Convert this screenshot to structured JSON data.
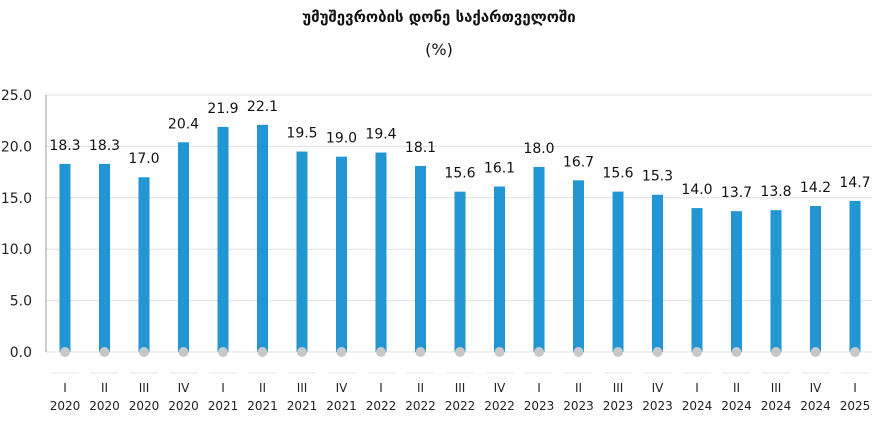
{
  "chart_data": {
    "type": "bar",
    "title": "უმუშევრობის დონე საქართველოში",
    "subtitle": "(%)",
    "categories": [
      {
        "quarter": "I",
        "year": "2020"
      },
      {
        "quarter": "II",
        "year": "2020"
      },
      {
        "quarter": "III",
        "year": "2020"
      },
      {
        "quarter": "IV",
        "year": "2020"
      },
      {
        "quarter": "I",
        "year": "2021"
      },
      {
        "quarter": "II",
        "year": "2021"
      },
      {
        "quarter": "III",
        "year": "2021"
      },
      {
        "quarter": "IV",
        "year": "2021"
      },
      {
        "quarter": "I",
        "year": "2022"
      },
      {
        "quarter": "II",
        "year": "2022"
      },
      {
        "quarter": "III",
        "year": "2022"
      },
      {
        "quarter": "IV",
        "year": "2022"
      },
      {
        "quarter": "I",
        "year": "2023"
      },
      {
        "quarter": "II",
        "year": "2023"
      },
      {
        "quarter": "III",
        "year": "2023"
      },
      {
        "quarter": "IV",
        "year": "2023"
      },
      {
        "quarter": "I",
        "year": "2024"
      },
      {
        "quarter": "II",
        "year": "2024"
      },
      {
        "quarter": "III",
        "year": "2024"
      },
      {
        "quarter": "IV",
        "year": "2024"
      },
      {
        "quarter": "I",
        "year": "2025"
      }
    ],
    "values": [
      18.3,
      18.3,
      17.0,
      20.4,
      21.9,
      22.1,
      19.5,
      19.0,
      19.4,
      18.1,
      15.6,
      16.1,
      18.0,
      16.7,
      15.6,
      15.3,
      14.0,
      13.7,
      13.8,
      14.2,
      14.7
    ],
    "value_labels": [
      "18.3",
      "18.3",
      "17.0",
      "20.4",
      "21.9",
      "22.1",
      "19.5",
      "19.0",
      "19.4",
      "18.1",
      "15.6",
      "16.1",
      "18.0",
      "16.7",
      "15.6",
      "15.3",
      "14.0",
      "13.7",
      "13.8",
      "14.2",
      "14.7"
    ],
    "ylim": [
      0,
      25
    ],
    "yticks": [
      0,
      5,
      10,
      15,
      20,
      25
    ],
    "ytick_labels": [
      "0.0",
      "5.0",
      "10.0",
      "15.0",
      "20.0",
      "25.0"
    ],
    "grid": true,
    "legend": "none",
    "colors": {
      "bar": "#2196d3",
      "marker": "#c8c8c8",
      "grid": "#e0e0e0",
      "axis": "#9e9e9e"
    }
  }
}
